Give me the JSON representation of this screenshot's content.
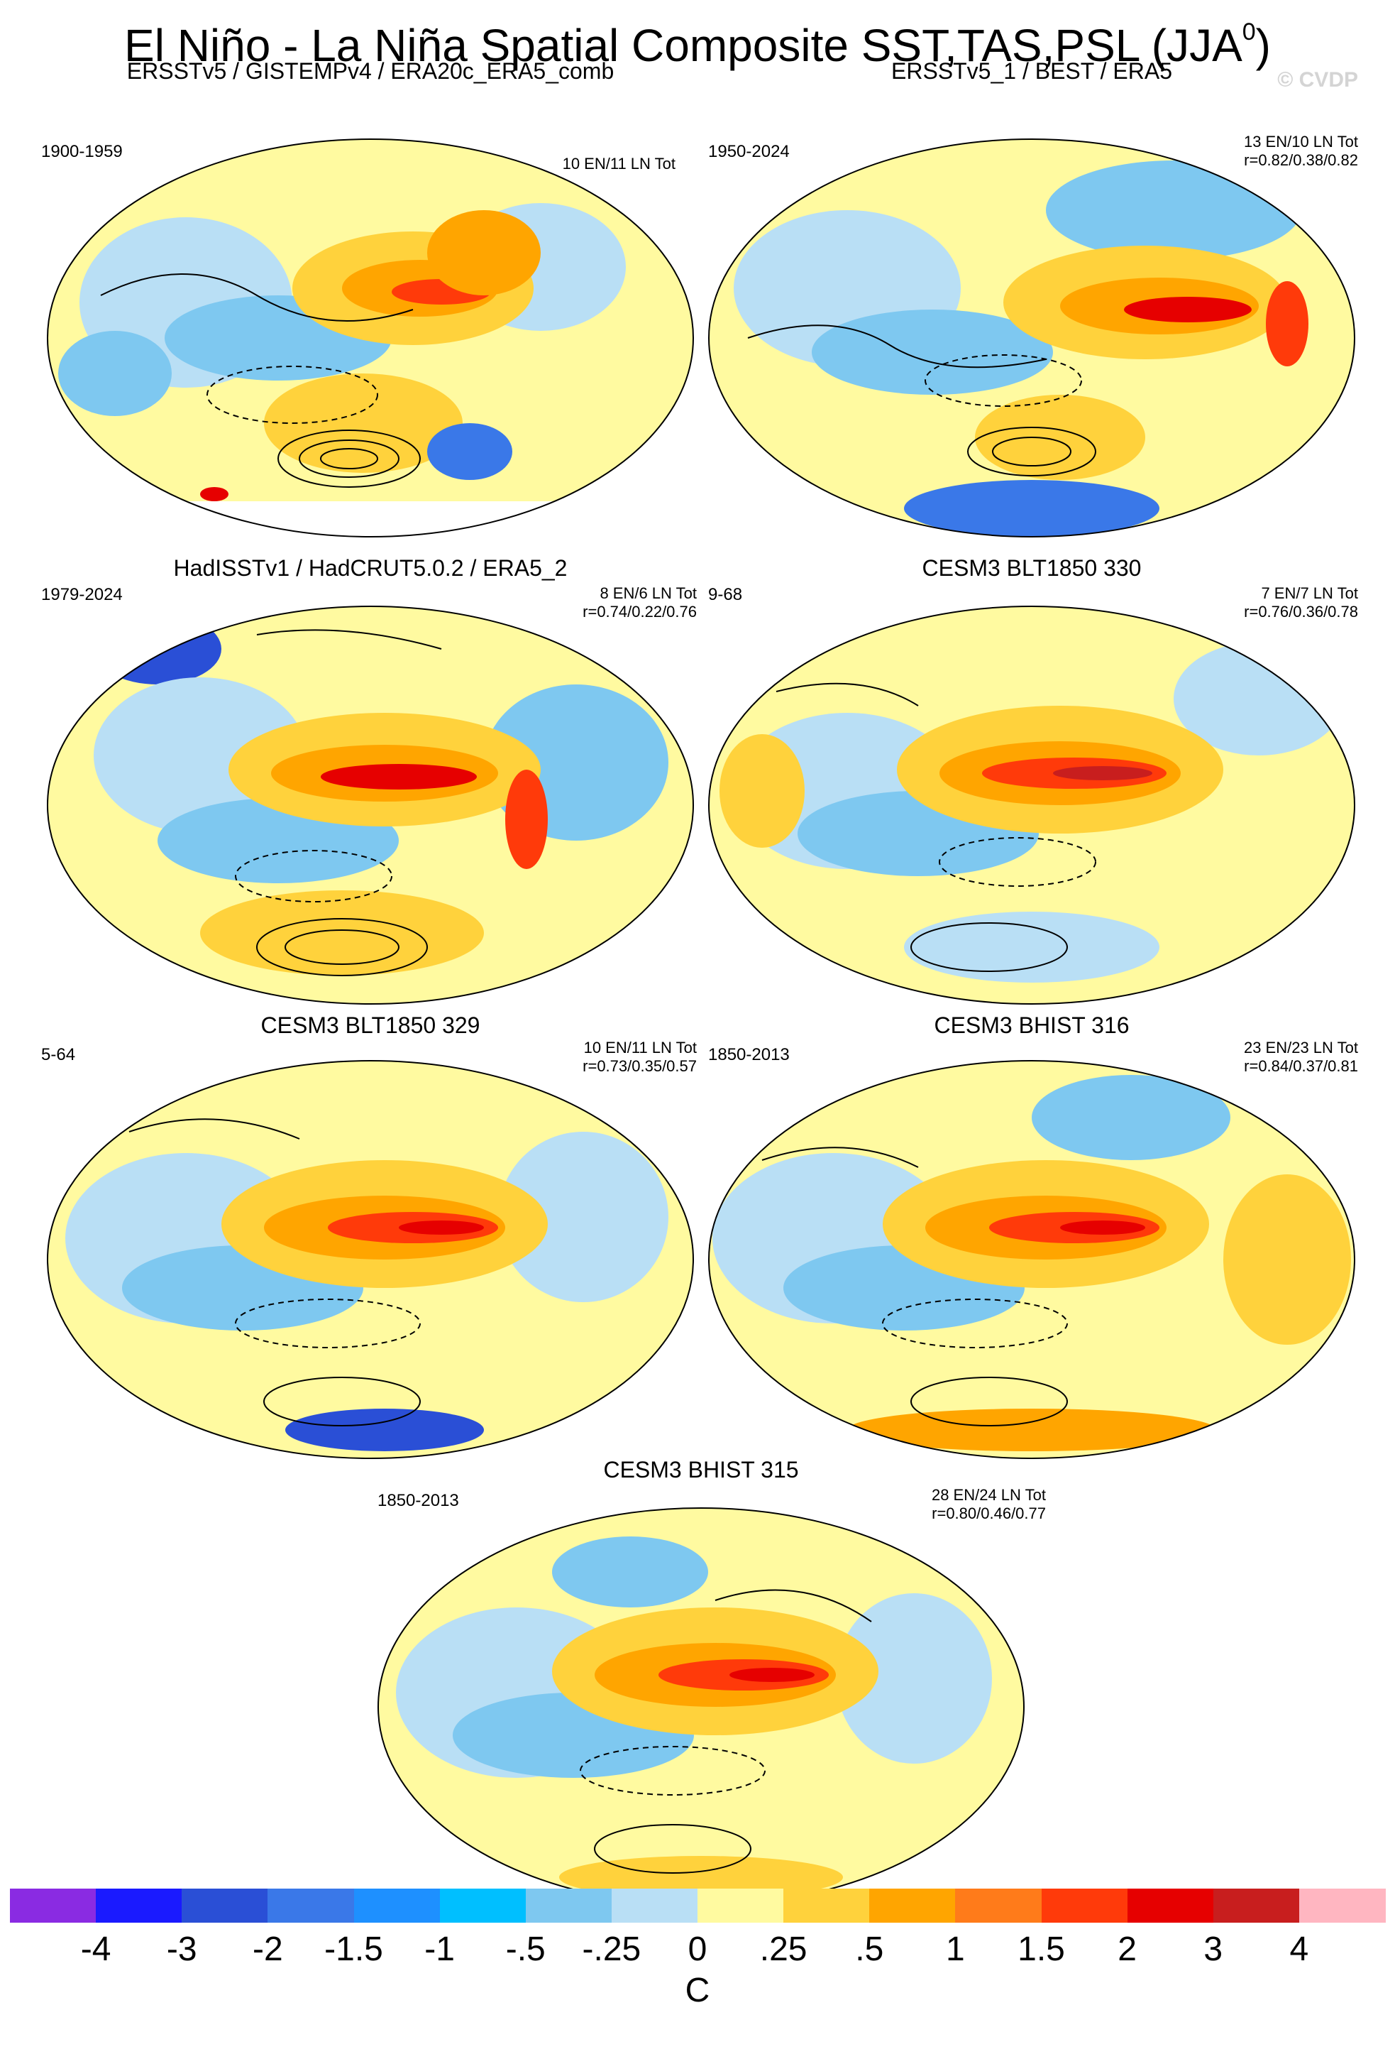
{
  "title": "El Niño - La Niña Spatial Composite SST,TAS,PSL (JJA",
  "title_sup": "0",
  "title_close": ")",
  "watermark": "© CVDP",
  "panels": [
    {
      "title": "ERSSTv5 / GISTEMPv4 / ERA20c_ERA5_comb",
      "years": "1900-1959",
      "events": "10 EN/11 LN Tot",
      "corr": ""
    },
    {
      "title": "ERSSTv5_1 / BEST / ERA5",
      "years": "1950-2024",
      "events": "13 EN/10 LN Tot",
      "corr": "r=0.82/0.38/0.82"
    },
    {
      "title": "HadISSTv1 / HadCRUT5.0.2 / ERA5_2",
      "years": "1979-2024",
      "events": "8 EN/6 LN Tot",
      "corr": "r=0.74/0.22/0.76"
    },
    {
      "title": "CESM3 BLT1850 330",
      "years": "9-68",
      "events": "7 EN/7 LN Tot",
      "corr": "r=0.76/0.36/0.78"
    },
    {
      "title": "CESM3 BLT1850 329",
      "years": "5-64",
      "events": "10 EN/11 LN Tot",
      "corr": "r=0.73/0.35/0.57"
    },
    {
      "title": "CESM3 BHIST 316",
      "years": "1850-2013",
      "events": "23 EN/23 LN Tot",
      "corr": "r=0.84/0.37/0.81"
    },
    {
      "title": "CESM3 BHIST 315",
      "years": "1850-2013",
      "events": "28 EN/24 LN Tot",
      "corr": "r=0.80/0.46/0.77"
    }
  ],
  "colorbar": {
    "colors": [
      "#8a2be2",
      "#1a1aff",
      "#2a4fd6",
      "#3a78e8",
      "#1e90ff",
      "#00bfff",
      "#7ec8f0",
      "#b9dff5",
      "#fffaa0",
      "#ffd23c",
      "#ffa500",
      "#ff7b1a",
      "#ff3a0a",
      "#e60000",
      "#c81e1e",
      "#ffb6c1"
    ],
    "labels": [
      "-4",
      "-3",
      "-2",
      "-1.5",
      "-1",
      "-.5",
      "-.25",
      "0",
      ".25",
      ".5",
      "1",
      "1.5",
      "2",
      "3",
      "4"
    ],
    "units": "C"
  }
}
